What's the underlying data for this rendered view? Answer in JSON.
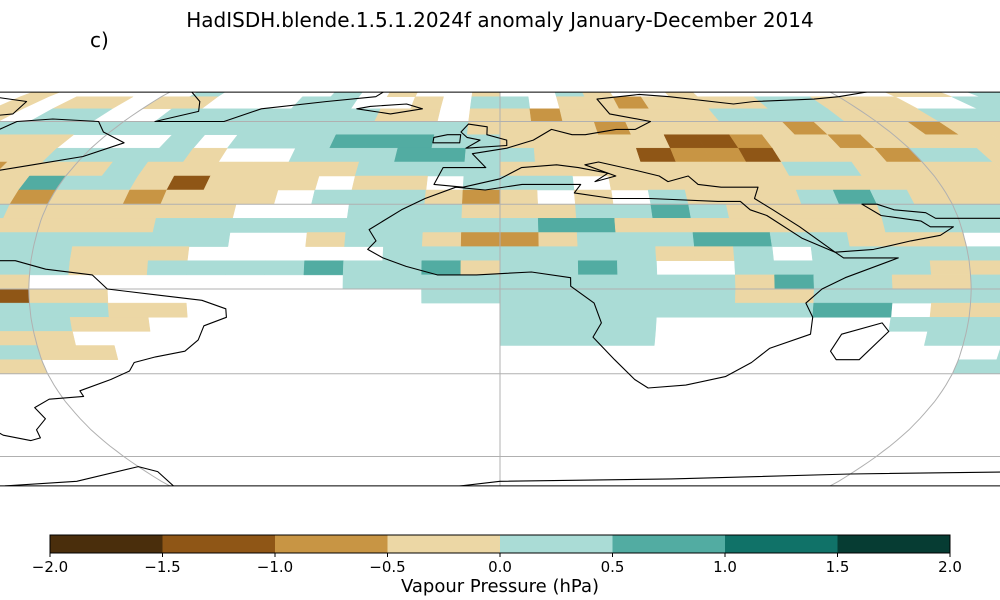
{
  "title": "HadISDH.blende.1.5.1.2024f anomaly January-December 2014",
  "panel_label": "c)",
  "projection": "Robinson",
  "colorbar": {
    "label": "Vapour Pressure (hPa)",
    "ticks": [
      "−2.0",
      "−1.5",
      "−1.0",
      "−0.5",
      "0.0",
      "0.5",
      "1.0",
      "1.5",
      "2.0"
    ],
    "bins": [
      -2.0,
      -1.5,
      -1.0,
      -0.5,
      0.0,
      0.5,
      1.0,
      1.5,
      2.0
    ],
    "colors": [
      "#4a2e0c",
      "#8f5616",
      "#c89544",
      "#ecd7a5",
      "#aadcd6",
      "#52aca2",
      "#107268",
      "#063c33"
    ]
  },
  "chart_data": {
    "type": "heatmap",
    "title": "HadISDH.blende.1.5.1.2024f anomaly January-December 2014",
    "colorbar_label": "Vapour Pressure (hPa)",
    "value_range": [
      -2.0,
      2.0
    ],
    "grid_resolution_deg": 5,
    "cell_value_legend": {
      "a": -1.75,
      "b": -1.25,
      "c": -0.75,
      "d": -0.25,
      "e": 0.25,
      "f": 0.75,
      "g": 1.25,
      "h": 1.75
    },
    "lat_start": 85,
    "lat_step": -5,
    "lon_start": -180,
    "lon_step": 5,
    "rows": [
      "........................................................................",
      "....................................d.................................",
      "............dd.d...d.....e....e.d..d..ed..d.......dd.ee.e......",
      "...............ddd.d.dd.dd...ee..d.ee.ddcddddeeddd..eee........",
      "..........dddcdddddd.ee..eeeeeeedd.ddcdddddeeeedddeeee.e......",
      ".......eeeeeedddcddeeeeeeeeeeeeeeeeddddcdddddcdddcddddeeeeeee...",
      "....eeeeffggffddddddddd...e.eeefffeedddddbbcddcdddddeeeeeeeeeeeee..",
      "....deefgghffdcccccddddeeeed..eeeffeedddbccbdddceedeeeedeeecdd.",
      ".......eeefghgffdcccccdddeddddddeeeeddddddddeedddddeeeeeeddbbd...",
      "......eeeffggggfcddddddfeedbddd.dd.eee.dddddddddddddeeeeeeebha...",
      ".....fe..ee.eeffggfdeddcddcddd.eeedcd.d.edddefeddddeeeeddddd....",
      "..............eggfddddedddddd...eeedddeefeddddeeeeefedeeeee....",
      "...............eeddddddddddeeeeeeeeeeffdddddddeeeeeeeeffeeeee.",
      "...............eedddddeeeeeee..deedccdeeeffeeddd.ffdeefeeeeee",
      "...............eeeddcddeeddd.....eeeeeeedde.eeeeeeddddefeeeeee",
      ".............eeedddcddeeeddeeeefeefdeefe..eeeeeddfeeedddeeeeeeefe",
      "..dc..........eedeeeebdd........eeeeeeeeeedfeeddeeeedeeefeeccdda",
      "..dd.....cd....eeeefeebbdd........eeeeeeeeddeeeeeeeeeeeddddddde",
      "..........dd.dd....efefeeedd........eeeeeeeeff.ddddd.ddddddcdd",
      "................ddeffgfeedd.........eeee......eee..eeddddddcdd.",
      "................dddfeefdd...........eeee.......eeeeeeeeee.ddddb",
      "..................ddfeeedd.......................eee.eeeedcb...",
      "...............d.edeeddd........................eee........",
      "...............ddddd.................................",
      ".................dd....................................."
    ]
  }
}
